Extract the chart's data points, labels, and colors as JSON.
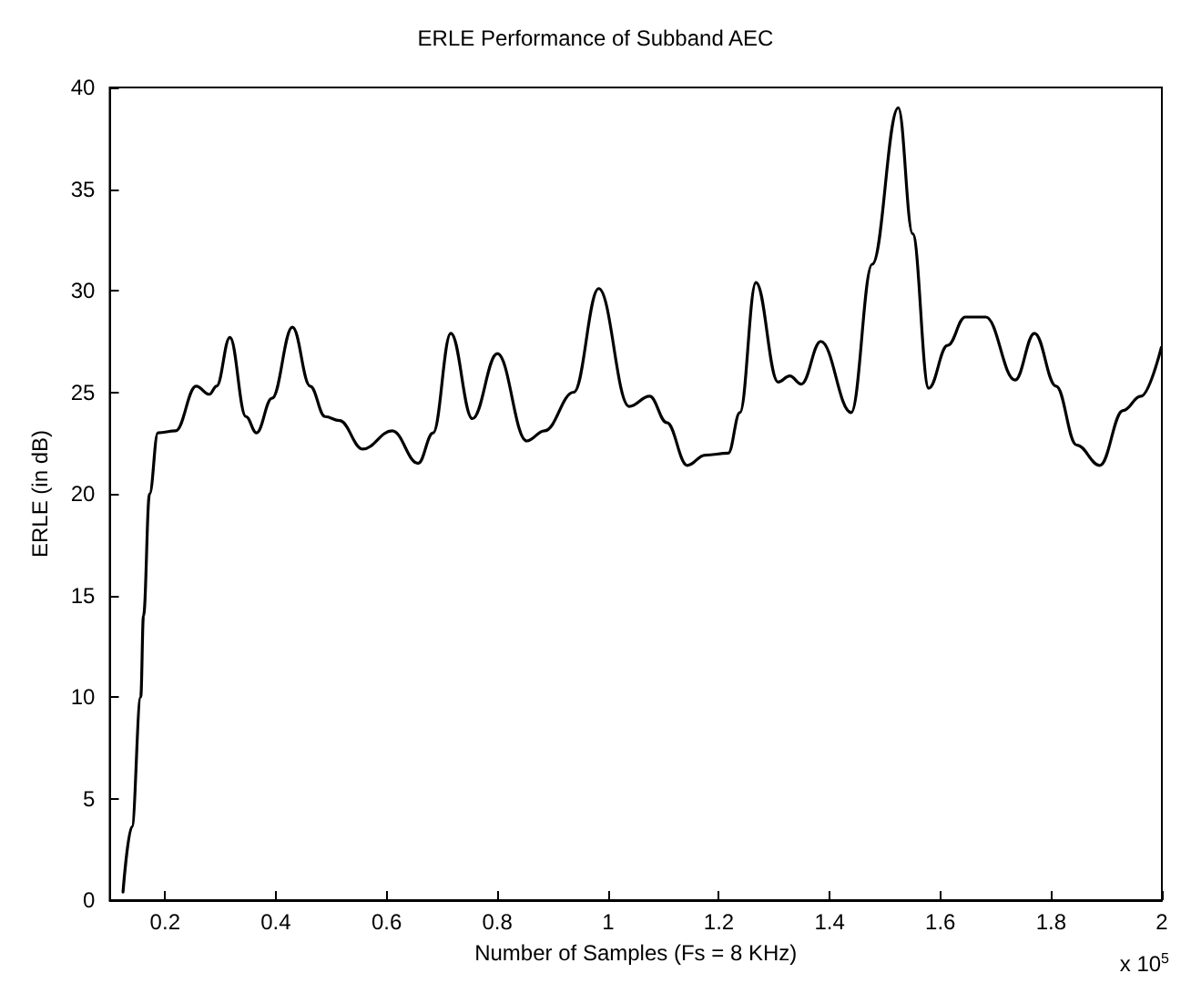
{
  "chart_data": {
    "type": "line",
    "title": "ERLE Performance of Subband AEC",
    "xlabel": "Number of Samples (Fs = 8 KHz)",
    "ylabel": "ERLE (in dB)",
    "annotations": [
      "x 10$^{5}$"
    ],
    "x": [
      0.124,
      0.14,
      0.156,
      0.161,
      0.172,
      0.187,
      0.219,
      0.256,
      0.28,
      0.293,
      0.317,
      0.346,
      0.365,
      0.393,
      0.43,
      0.462,
      0.489,
      0.515,
      0.557,
      0.61,
      0.657,
      0.684,
      0.716,
      0.755,
      0.8,
      0.853,
      0.885,
      0.938,
      0.983,
      1.038,
      1.075,
      1.106,
      1.143,
      1.175,
      1.217,
      1.238,
      1.267,
      1.307,
      1.328,
      1.349,
      1.384,
      1.439,
      1.477,
      1.524,
      1.55,
      1.579,
      1.613,
      1.645,
      1.682,
      1.735,
      1.77,
      1.809,
      1.846,
      1.888,
      1.93,
      1.962,
      1.999
    ],
    "series": [
      {
        "color": "#000000",
        "values": [
          0.4,
          3.6,
          10,
          14,
          20,
          23,
          23.1,
          25.3,
          24.9,
          25.3,
          27.7,
          23.8,
          23,
          24.7,
          28.2,
          25.3,
          23.8,
          23.6,
          22.2,
          23.1,
          21.5,
          23,
          27.9,
          23.7,
          26.9,
          22.6,
          23.1,
          25,
          30.1,
          24.3,
          24.8,
          23.5,
          21.4,
          21.9,
          22,
          24,
          30.4,
          25.5,
          25.8,
          25.4,
          27.5,
          24,
          31.3,
          39,
          32.8,
          25.2,
          27.3,
          28.7,
          28.7,
          25.6,
          27.9,
          25.3,
          22.4,
          21.4,
          24.1,
          24.8,
          27.2
        ]
      }
    ],
    "xlim": [
      0.1,
      2
    ],
    "xticks": [
      0.2,
      0.4,
      0.6,
      0.8,
      1,
      1.2,
      1.4,
      1.6,
      1.8,
      2
    ],
    "ylim": [
      0,
      40
    ],
    "yticks": [
      0,
      5,
      10,
      15,
      20,
      25,
      30,
      35,
      40
    ],
    "grid": false,
    "marker": "none",
    "line_style": "solid"
  }
}
